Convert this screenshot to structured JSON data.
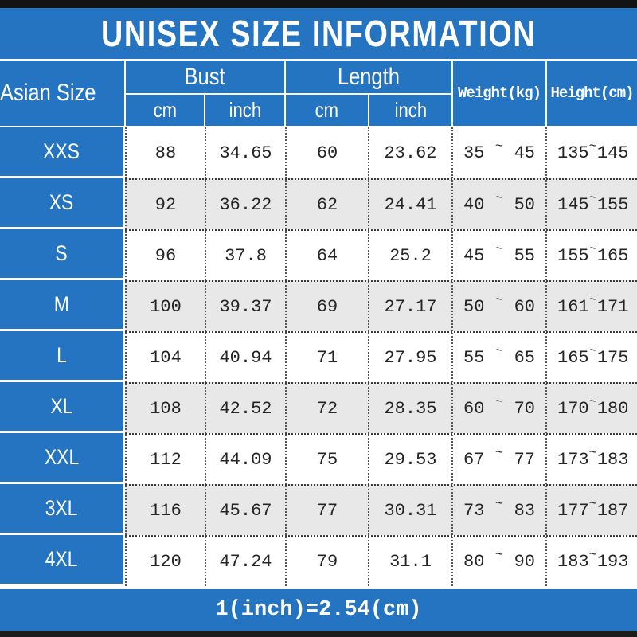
{
  "title": "UNISEX SIZE INFORMATION",
  "footer": "1(inch)=2.54(cm)",
  "sep": "~",
  "colors": {
    "accent_blue": "#2574c2",
    "alt_row_gray": "#e8e8e8",
    "top_bar": "#131313",
    "bottom_bar": "#1c1c1c",
    "text_dark": "#252525",
    "text_light": "#ffffff"
  },
  "header": {
    "size": "Asian Size",
    "bust": "Bust",
    "length": "Length",
    "cm": "cm",
    "inch": "inch",
    "weight": "Weight(kg)",
    "height": "Height(cm)"
  },
  "rows": [
    {
      "size": "XXS",
      "bust_cm": "88",
      "bust_inch": "34.65",
      "len_cm": "60",
      "len_inch": "23.62",
      "w_min": "35",
      "w_max": "45",
      "h_min": "135",
      "h_max": "145"
    },
    {
      "size": "XS",
      "bust_cm": "92",
      "bust_inch": "36.22",
      "len_cm": "62",
      "len_inch": "24.41",
      "w_min": "40",
      "w_max": "50",
      "h_min": "145",
      "h_max": "155"
    },
    {
      "size": "S",
      "bust_cm": "96",
      "bust_inch": "37.8",
      "len_cm": "64",
      "len_inch": "25.2",
      "w_min": "45",
      "w_max": "55",
      "h_min": "155",
      "h_max": "165"
    },
    {
      "size": "M",
      "bust_cm": "100",
      "bust_inch": "39.37",
      "len_cm": "69",
      "len_inch": "27.17",
      "w_min": "50",
      "w_max": "60",
      "h_min": "161",
      "h_max": "171"
    },
    {
      "size": "L",
      "bust_cm": "104",
      "bust_inch": "40.94",
      "len_cm": "71",
      "len_inch": "27.95",
      "w_min": "55",
      "w_max": "65",
      "h_min": "165",
      "h_max": "175"
    },
    {
      "size": "XL",
      "bust_cm": "108",
      "bust_inch": "42.52",
      "len_cm": "72",
      "len_inch": "28.35",
      "w_min": "60",
      "w_max": "70",
      "h_min": "170",
      "h_max": "180"
    },
    {
      "size": "XXL",
      "bust_cm": "112",
      "bust_inch": "44.09",
      "len_cm": "75",
      "len_inch": "29.53",
      "w_min": "67",
      "w_max": "77",
      "h_min": "173",
      "h_max": "183"
    },
    {
      "size": "3XL",
      "bust_cm": "116",
      "bust_inch": "45.67",
      "len_cm": "77",
      "len_inch": "30.31",
      "w_min": "73",
      "w_max": "83",
      "h_min": "177",
      "h_max": "187"
    },
    {
      "size": "4XL",
      "bust_cm": "120",
      "bust_inch": "47.24",
      "len_cm": "79",
      "len_inch": "31.1",
      "w_min": "80",
      "w_max": "90",
      "h_min": "183",
      "h_max": "193"
    }
  ],
  "chart_data": {
    "type": "table",
    "title": "UNISEX SIZE INFORMATION",
    "columns": [
      "Asian Size",
      "Bust cm",
      "Bust inch",
      "Length cm",
      "Length inch",
      "Weight(kg)",
      "Height(cm)"
    ],
    "rows": [
      [
        "XXS",
        88,
        34.65,
        60,
        23.62,
        "35~45",
        "135~145"
      ],
      [
        "XS",
        92,
        36.22,
        62,
        24.41,
        "40~50",
        "145~155"
      ],
      [
        "S",
        96,
        37.8,
        64,
        25.2,
        "45~55",
        "155~165"
      ],
      [
        "M",
        100,
        39.37,
        69,
        27.17,
        "50~60",
        "161~171"
      ],
      [
        "L",
        104,
        40.94,
        71,
        27.95,
        "55~65",
        "165~175"
      ],
      [
        "XL",
        108,
        42.52,
        72,
        28.35,
        "60~70",
        "170~180"
      ],
      [
        "XXL",
        112,
        44.09,
        75,
        29.53,
        "67~77",
        "173~183"
      ],
      [
        "3XL",
        116,
        45.67,
        77,
        30.31,
        "73~83",
        "177~187"
      ],
      [
        "4XL",
        120,
        47.24,
        79,
        31.1,
        "80~90",
        "183~193"
      ]
    ],
    "note": "1(inch)=2.54(cm)"
  }
}
